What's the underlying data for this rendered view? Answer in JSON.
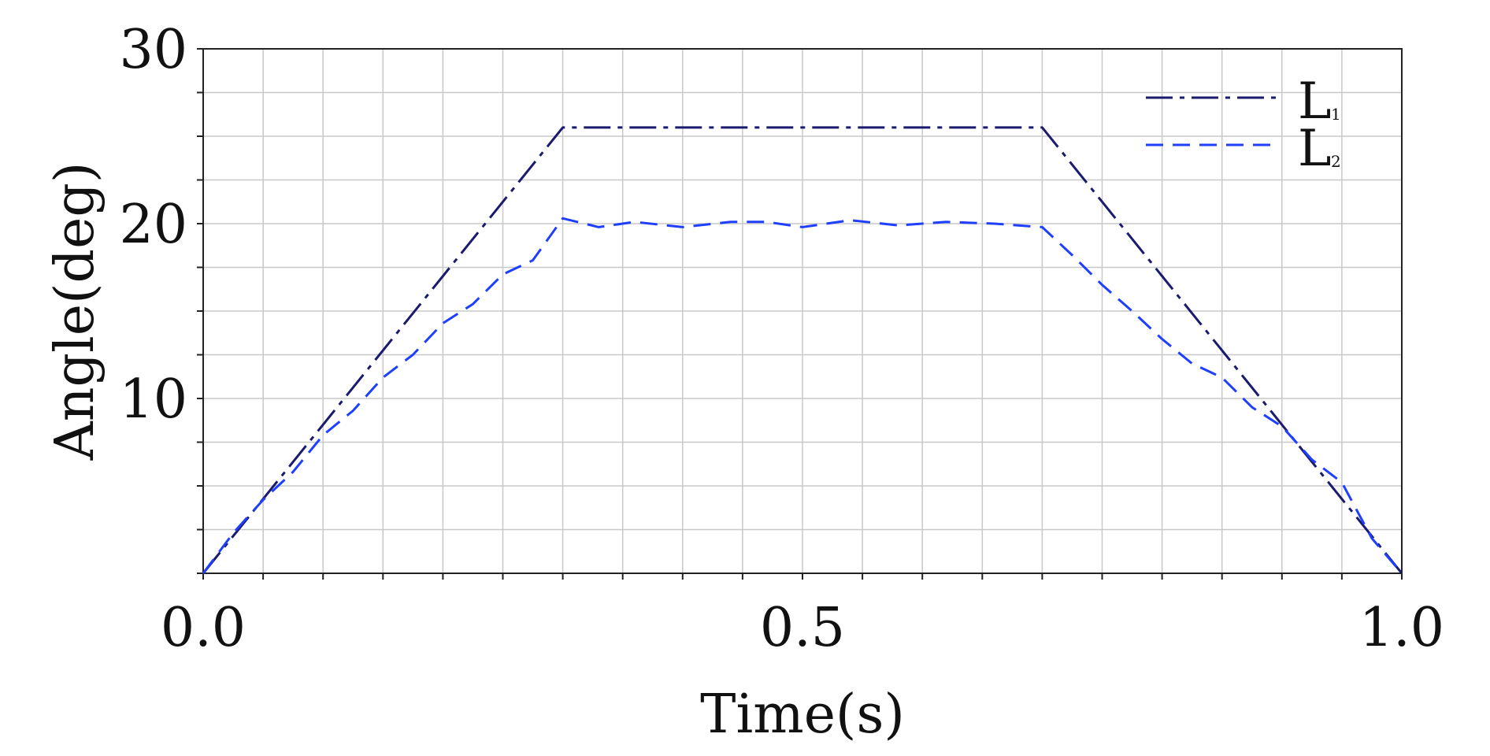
{
  "chart_data": {
    "type": "line",
    "title": "",
    "xlabel": "Time(s)",
    "ylabel": "Angle(deg)",
    "xlim": [
      0,
      1
    ],
    "ylim": [
      0,
      30
    ],
    "grid": true,
    "legend_position": "top-right",
    "x_tick_labels": [
      {
        "value": 0,
        "label": "0.0"
      },
      {
        "value": 0.5,
        "label": "0.5"
      },
      {
        "value": 1,
        "label": "1.0"
      }
    ],
    "y_tick_labels": [
      {
        "value": 10,
        "label": "10"
      },
      {
        "value": 20,
        "label": "20"
      },
      {
        "value": 30,
        "label": "30"
      }
    ],
    "series": [
      {
        "name": "L",
        "subscript": "1",
        "color": "#1a1a6e",
        "style": "dash-dot",
        "x": [
          0,
          0.3,
          0.7,
          1.0
        ],
        "y": [
          0,
          25.5,
          25.5,
          0
        ]
      },
      {
        "name": "L",
        "subscript": "2",
        "color": "#1f3fff",
        "style": "dashed",
        "x": [
          0,
          0.025,
          0.05,
          0.075,
          0.1,
          0.125,
          0.15,
          0.175,
          0.2,
          0.225,
          0.25,
          0.275,
          0.3,
          0.33,
          0.36,
          0.4,
          0.44,
          0.47,
          0.5,
          0.54,
          0.58,
          0.62,
          0.66,
          0.7,
          0.725,
          0.75,
          0.775,
          0.8,
          0.825,
          0.85,
          0.875,
          0.9,
          0.925,
          0.95,
          0.975,
          1.0
        ],
        "y": [
          0,
          2.3,
          4.2,
          5.8,
          7.9,
          9.3,
          11.2,
          12.5,
          14.3,
          15.4,
          17.1,
          17.9,
          20.3,
          19.8,
          20.1,
          19.8,
          20.1,
          20.1,
          19.8,
          20.2,
          19.9,
          20.1,
          20.0,
          19.8,
          18.2,
          16.5,
          15.0,
          13.4,
          12.0,
          11.2,
          9.5,
          8.4,
          6.5,
          5.2,
          2.0,
          0
        ]
      }
    ]
  }
}
